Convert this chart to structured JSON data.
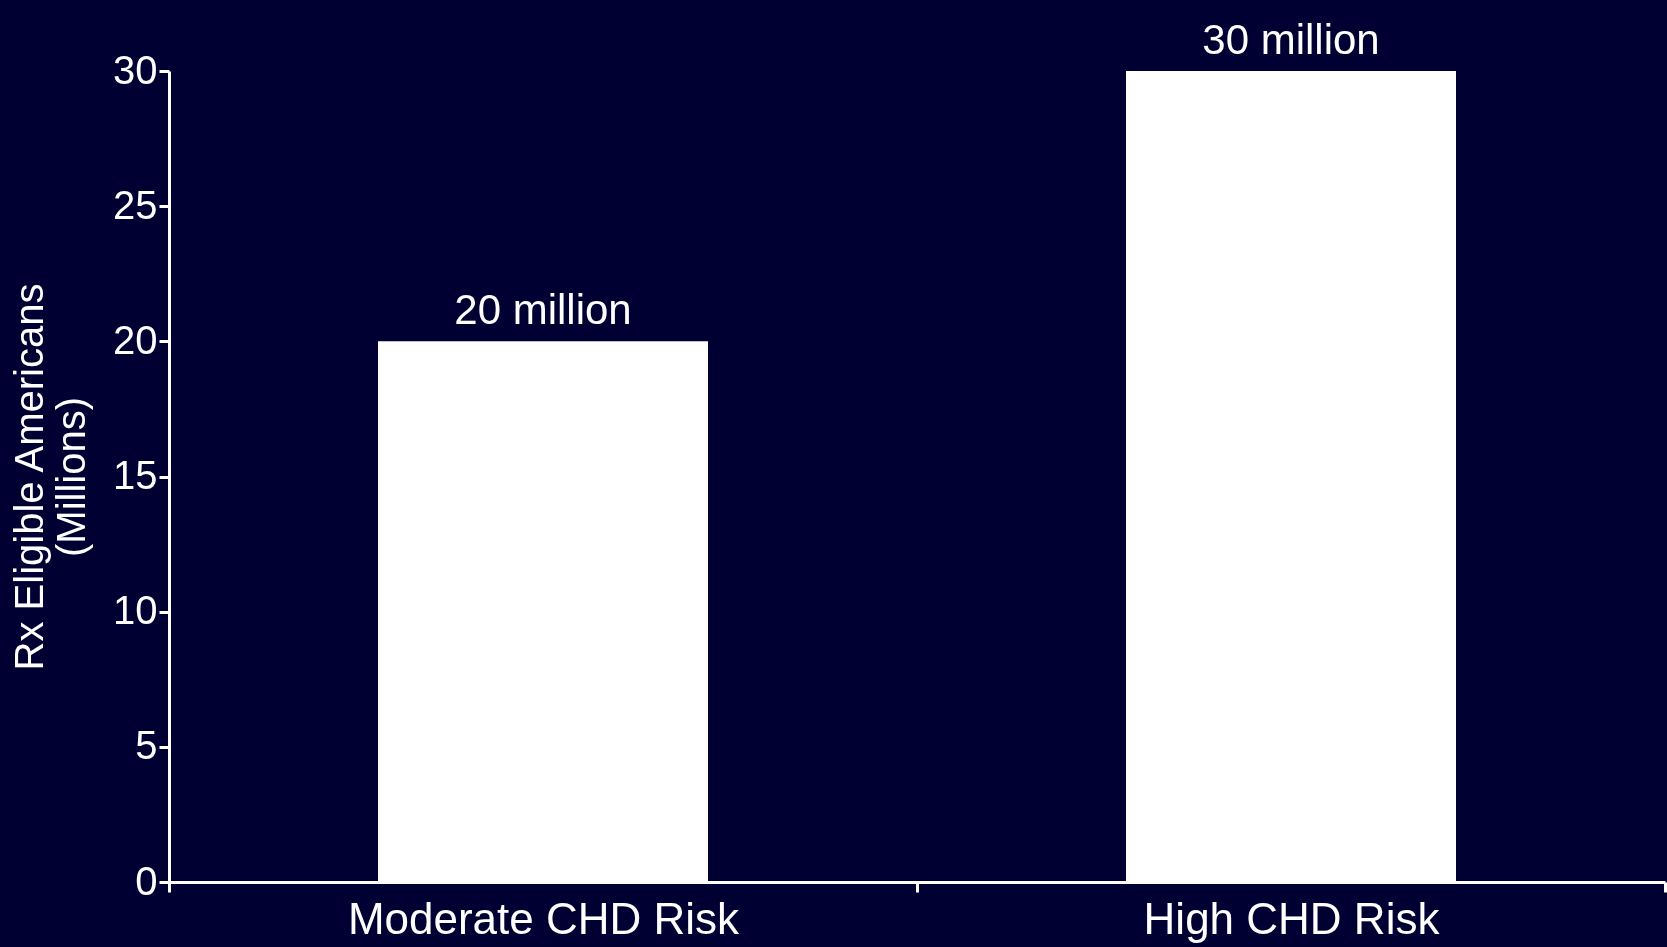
{
  "chart_data": {
    "type": "bar",
    "ylabel": "Rx Eligible Americans\n(Millions)",
    "categories": [
      "Moderate CHD Risk",
      "High CHD Risk"
    ],
    "values": [
      20,
      30
    ],
    "color": "#ffffff",
    "value_labels": [
      "20 million",
      "30 million"
    ],
    "ylim": [
      0,
      30
    ],
    "yticks": [
      0,
      5,
      10,
      15,
      20,
      25,
      30
    ],
    "grid": false
  }
}
